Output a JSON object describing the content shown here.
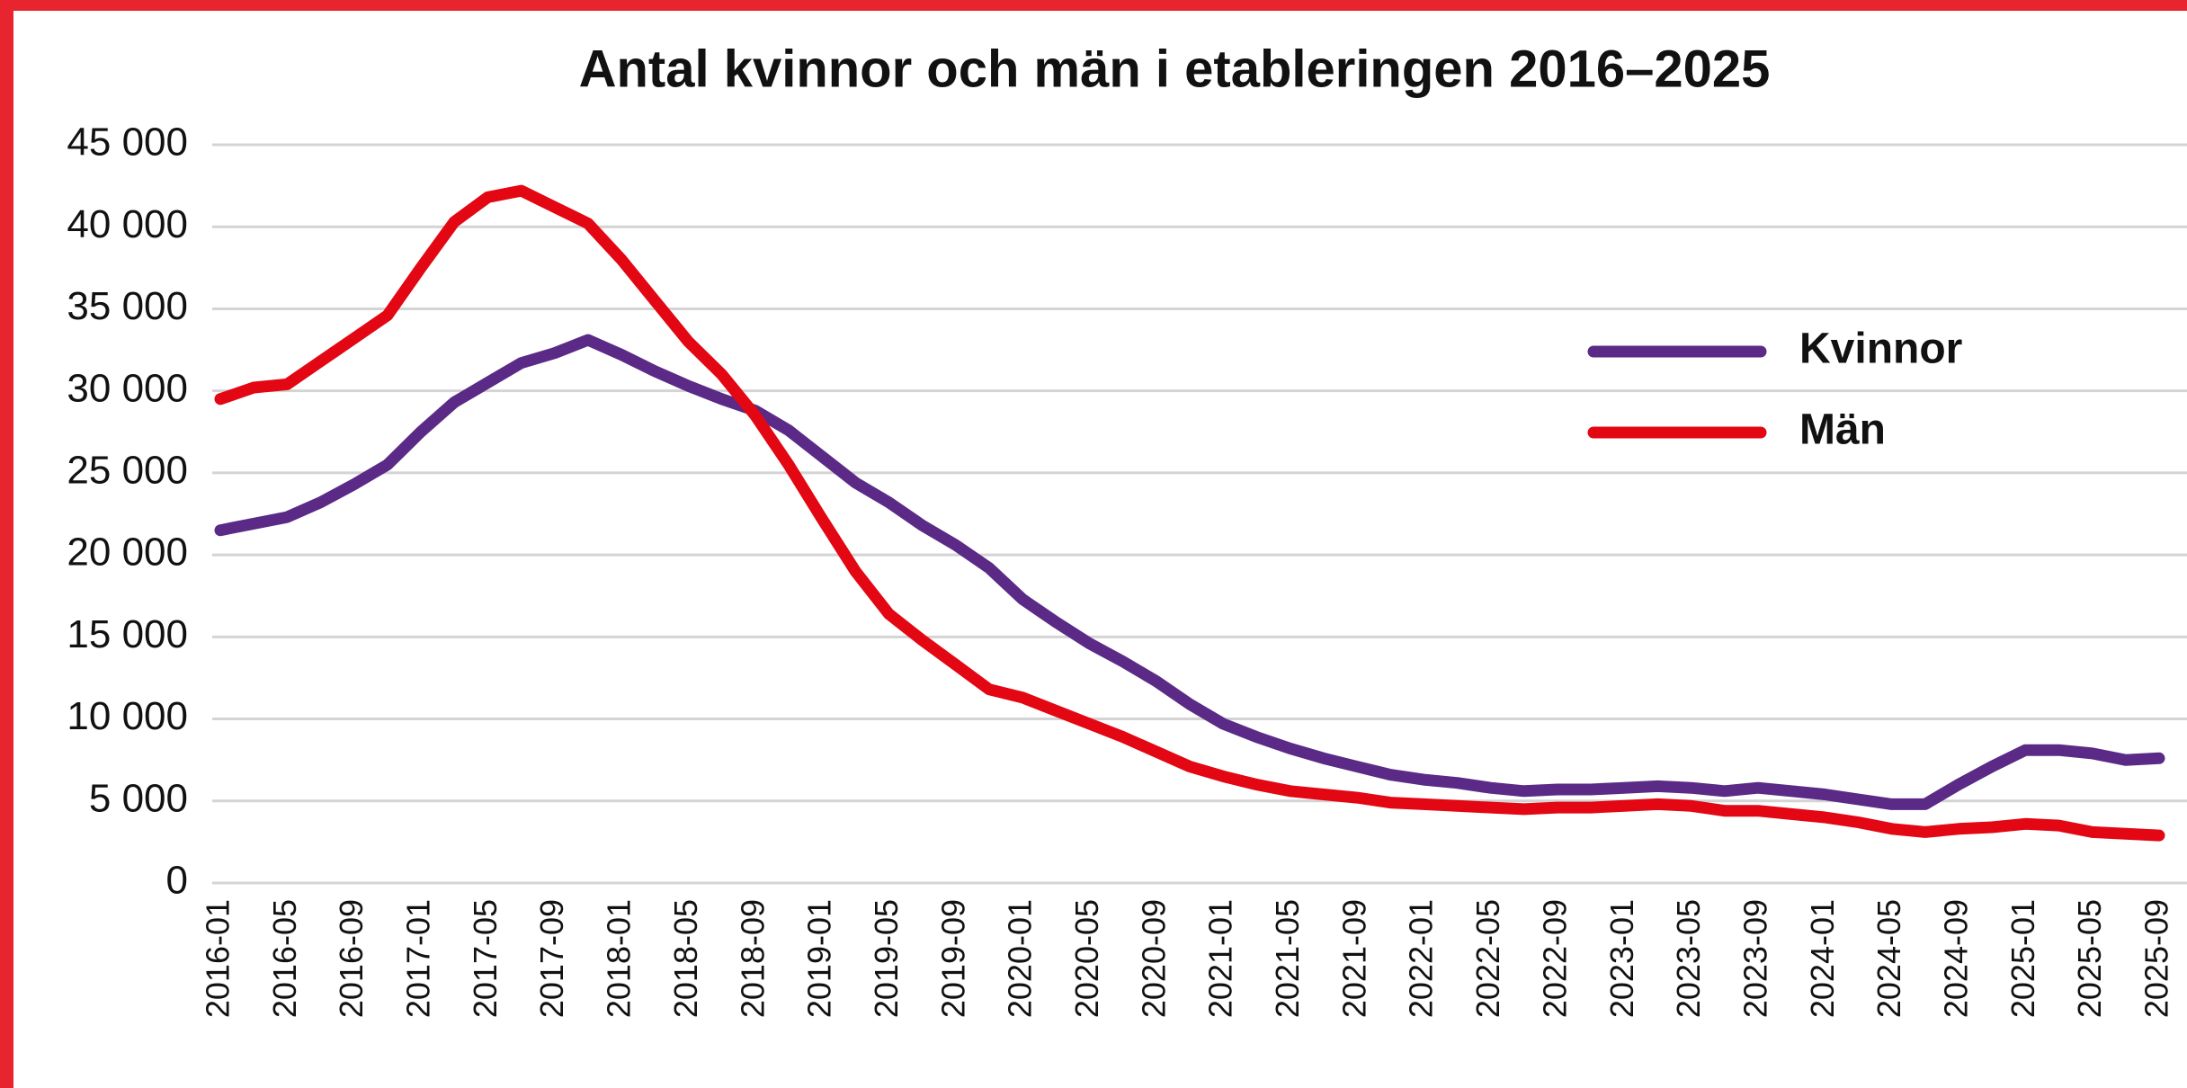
{
  "chart_data": {
    "type": "line",
    "title": "Antal kvinnor och män i etableringen 2016–2025",
    "categories": [
      "2016-01",
      null,
      "2016-05",
      null,
      "2016-09",
      null,
      "2017-01",
      null,
      "2017-05",
      null,
      "2017-09",
      null,
      "2018-01",
      null,
      "2018-05",
      null,
      "2018-09",
      null,
      "2019-01",
      null,
      "2019-05",
      null,
      "2019-09",
      null,
      "2020-01",
      null,
      "2020-05",
      null,
      "2020-09",
      null,
      "2021-01",
      null,
      "2021-05",
      null,
      "2021-09",
      null,
      "2022-01",
      null,
      "2022-05",
      null,
      "2022-09",
      null,
      "2023-01",
      null,
      "2023-05",
      null,
      "2023-09",
      null,
      "2024-01",
      null,
      "2024-05",
      null,
      "2024-09",
      null,
      "2025-01",
      null,
      "2025-05",
      null,
      "2025-09"
    ],
    "series": [
      {
        "name": "Kvinnor",
        "color": "#5b2a86",
        "values": [
          21500,
          21900,
          22300,
          23200,
          24300,
          25500,
          27500,
          29300,
          30500,
          31700,
          32300,
          33100,
          32200,
          31200,
          30300,
          29500,
          28800,
          27600,
          26000,
          24400,
          23200,
          21800,
          20600,
          19200,
          17300,
          15900,
          14600,
          13500,
          12300,
          10900,
          9700,
          8900,
          8200,
          7600,
          7100,
          6600,
          6300,
          6100,
          5800,
          5600,
          5700,
          5700,
          5800,
          5900,
          5800,
          5600,
          5800,
          5600,
          5400,
          5100,
          4800,
          4800,
          6000,
          7100,
          8100,
          8100,
          7900,
          7500,
          7600
        ]
      },
      {
        "name": "Män",
        "color": "#e30613",
        "values": [
          29500,
          30200,
          30400,
          31800,
          33200,
          34600,
          37500,
          40300,
          41800,
          42200,
          41200,
          40200,
          38000,
          35500,
          33000,
          31000,
          28500,
          25500,
          22200,
          19000,
          16400,
          14800,
          13300,
          11800,
          11300,
          10500,
          9700,
          8900,
          8000,
          7100,
          6500,
          6000,
          5600,
          5400,
          5200,
          4900,
          4800,
          4700,
          4600,
          4500,
          4600,
          4600,
          4700,
          4800,
          4700,
          4400,
          4400,
          4200,
          4000,
          3700,
          3300,
          3100,
          3300,
          3400,
          3600,
          3500,
          3100,
          3000,
          2900
        ]
      }
    ],
    "ylim": [
      0,
      45000
    ],
    "yticks": [
      0,
      {
        "value": 5000,
        "label": "5 000"
      },
      {
        "value": 10000,
        "label": "10 000"
      },
      {
        "value": 15000,
        "label": "15 000"
      },
      {
        "value": 20000,
        "label": "20 000"
      },
      {
        "value": 25000,
        "label": "25 000"
      },
      {
        "value": 30000,
        "label": "30 000"
      },
      {
        "value": 35000,
        "label": "35 000"
      },
      {
        "value": 40000,
        "label": "40 000"
      },
      {
        "value": 45000,
        "label": "45 000"
      }
    ],
    "grid": true
  }
}
